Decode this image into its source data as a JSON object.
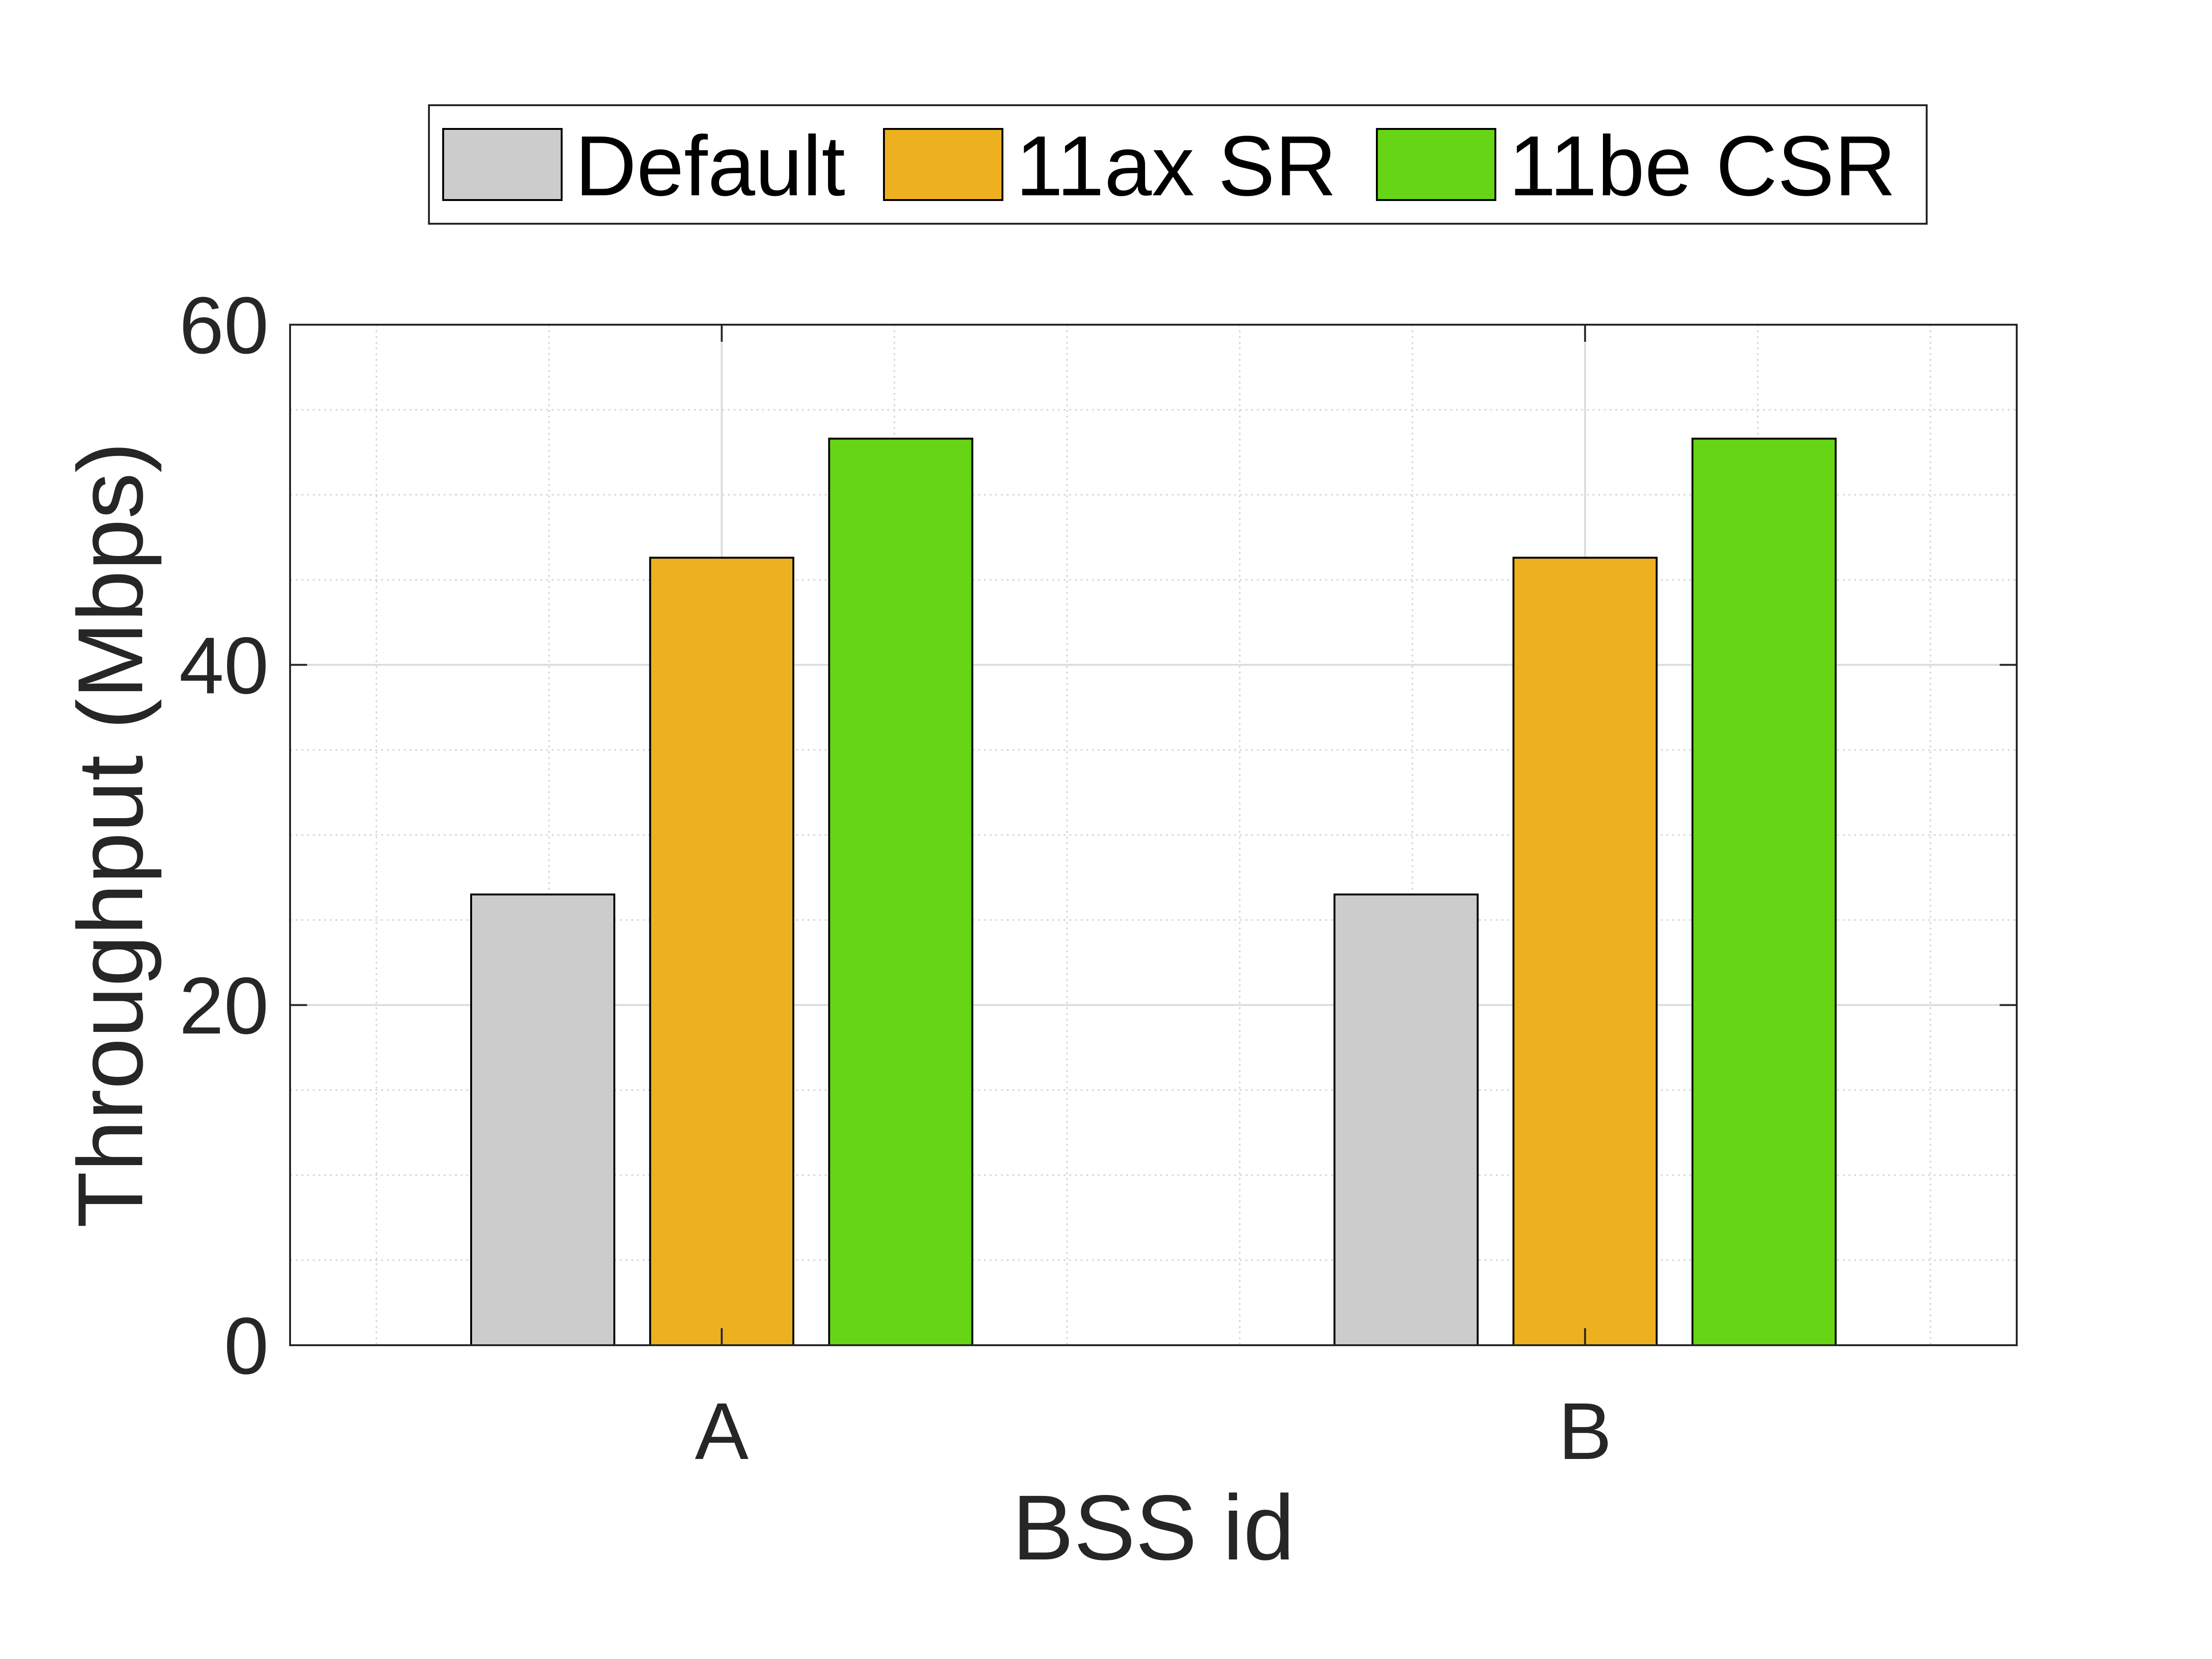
{
  "chart_data": {
    "type": "bar",
    "categories": [
      "A",
      "B"
    ],
    "series": [
      {
        "name": "Default",
        "color": "#cccccc",
        "values": [
          26.5,
          26.5
        ]
      },
      {
        "name": "11ax SR",
        "color": "#edb120",
        "values": [
          46.3,
          46.3
        ]
      },
      {
        "name": "11be CSR",
        "color": "#66d515",
        "values": [
          53.3,
          53.3
        ]
      }
    ],
    "xlabel": "BSS id",
    "ylabel": "Throughput (Mbps)",
    "ylim": [
      0,
      60
    ],
    "yticks": [
      0,
      20,
      40,
      60
    ],
    "ytick_labels": [
      "0",
      "20",
      "40",
      "60"
    ],
    "grid": true,
    "minor_grid": true,
    "legend_position": "top",
    "legend_orientation": "horizontal"
  }
}
